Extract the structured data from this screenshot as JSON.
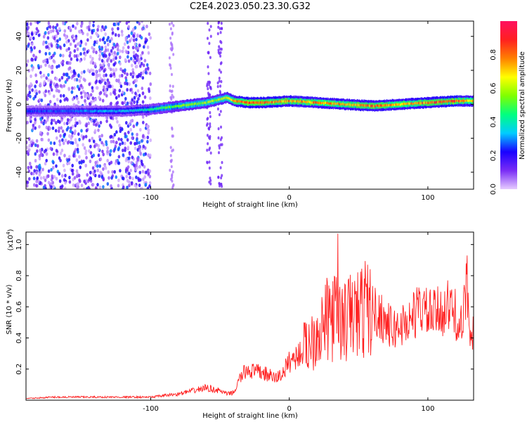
{
  "title": "C2E4.2023.050.23.30.G32",
  "chart_data": [
    {
      "type": "heatmap",
      "xlabel": "Height of straight line (km)",
      "ylabel": "Frequency (Hz)",
      "xlim": [
        -190,
        133
      ],
      "ylim": [
        -50,
        49
      ],
      "xticks": [
        -100,
        0,
        100
      ],
      "yticks": [
        -40,
        -20,
        0,
        20,
        40
      ],
      "colorbar": {
        "label": "Normalized spectral amplitude",
        "range": [
          0,
          1
        ],
        "ticks": [
          "0.0",
          "0.2",
          "0.4",
          "0.6",
          "0.8"
        ],
        "tick_values": [
          0,
          0.2,
          0.4,
          0.6,
          0.8
        ],
        "colors": [
          "#e6ccff",
          "#7a2df5",
          "#1a00ff",
          "#00ccff",
          "#00ff80",
          "#80ff00",
          "#ffff00",
          "#ff8000",
          "#ff2020",
          "#ff1060"
        ]
      },
      "ridge": {
        "name": "frequency ridge",
        "x": [
          -190,
          -150,
          -120,
          -100,
          -80,
          -60,
          -45,
          -40,
          -30,
          -20,
          0,
          20,
          40,
          60,
          80,
          100,
          120,
          133
        ],
        "y": [
          -4,
          -4,
          -4,
          -3,
          -1,
          1,
          4,
          2,
          1,
          1,
          2,
          1,
          0,
          -1,
          0,
          1,
          2,
          2
        ],
        "peak_amplitude": [
          0.25,
          0.3,
          0.35,
          0.45,
          0.55,
          0.6,
          0.65,
          0.8,
          0.85,
          0.85,
          0.8,
          0.8,
          0.75,
          0.85,
          0.75,
          0.85,
          0.9,
          0.7
        ]
      },
      "noise_region": {
        "x_range": [
          -190,
          -100
        ],
        "amplitude": [
          0.02,
          0.3
        ]
      }
    },
    {
      "type": "line",
      "xlabel": "Height of straight line (km)",
      "ylabel": "SNR (10 * v/v)",
      "ylabel_units": "(x10",
      "ylabel_exponent": "4",
      "ylabel_units_close": ")",
      "xlim": [
        -190,
        133
      ],
      "ylim": [
        0,
        1.08
      ],
      "xticks": [
        -100,
        0,
        100
      ],
      "yticks": [
        0.2,
        0.4,
        0.6,
        0.8,
        1.0
      ],
      "ytick_labels": [
        "0.2",
        "0.4",
        "0.6",
        "0.8",
        "1.0"
      ],
      "color": "#ff2020",
      "series": [
        {
          "x": [
            -190,
            -170,
            -150,
            -130,
            -110,
            -100,
            -90,
            -80,
            -70,
            -60,
            -55,
            -50,
            -45,
            -40,
            -35,
            -30,
            -25,
            -20,
            -15,
            -10,
            -5,
            0,
            5,
            10,
            15,
            20,
            25,
            30,
            35,
            40,
            45,
            50,
            55,
            60,
            65,
            70,
            75,
            80,
            85,
            90,
            95,
            100,
            105,
            110,
            115,
            120,
            125,
            128,
            130,
            133
          ],
          "values": [
            0.01,
            0.02,
            0.02,
            0.02,
            0.02,
            0.02,
            0.03,
            0.04,
            0.06,
            0.08,
            0.07,
            0.06,
            0.04,
            0.05,
            0.15,
            0.2,
            0.18,
            0.18,
            0.16,
            0.14,
            0.17,
            0.25,
            0.28,
            0.32,
            0.38,
            0.45,
            0.48,
            0.55,
            0.52,
            0.5,
            0.55,
            0.55,
            0.6,
            0.58,
            0.55,
            0.5,
            0.45,
            0.48,
            0.5,
            0.55,
            0.6,
            0.55,
            0.55,
            0.58,
            0.6,
            0.55,
            0.45,
            0.78,
            0.5,
            0.45
          ]
        }
      ]
    }
  ]
}
